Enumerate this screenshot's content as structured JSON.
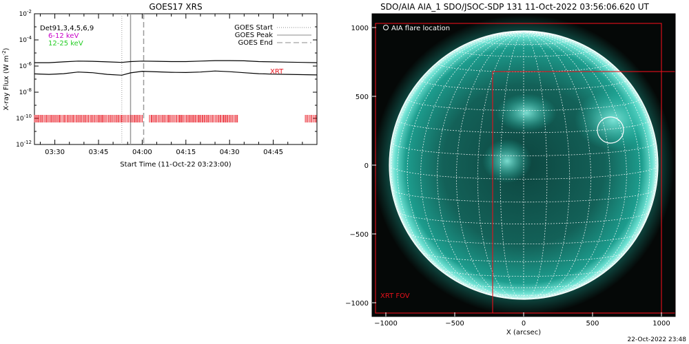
{
  "footer_timestamp": "22-Oct-2022 23:48",
  "colors": {
    "xrt_red": "#e8111b",
    "long_band": "#000000",
    "mid_band": "#c800c8",
    "high_band": "#22cc22",
    "sun_teal": "#1fc7b3"
  },
  "chart_data": [
    {
      "type": "line",
      "title": "GOES17 XRS",
      "xlabel": "Start Time (11-Oct-22 03:23:00)",
      "ylabel_main": "X-ray Flux (W m",
      "ylabel_sup": "-2",
      "ylabel_close": ")",
      "y_scale": "log",
      "xlim": [
        "03:23:00",
        "05:00:00"
      ],
      "ylim": [
        1e-12,
        0.01
      ],
      "x_ticks": [
        "03:30",
        "03:45",
        "04:00",
        "04:15",
        "04:30",
        "04:45"
      ],
      "y_ticks": [
        {
          "value": 0.01,
          "base": "10",
          "exp": "-2"
        },
        {
          "value": 0.0001,
          "base": "10",
          "exp": "-4"
        },
        {
          "value": 1e-06,
          "base": "10",
          "exp": "-6"
        },
        {
          "value": 1e-08,
          "base": "10",
          "exp": "-8"
        },
        {
          "value": 1e-10,
          "base": "10",
          "exp": "-10"
        },
        {
          "value": 1e-12,
          "base": "10",
          "exp": "-12"
        }
      ],
      "legend_left": {
        "det_label": "Det91,3,4,5,6,9",
        "entries": [
          {
            "label": "6-12 keV",
            "color": "#c800c8"
          },
          {
            "label": "12-25 keV",
            "color": "#22cc22"
          }
        ]
      },
      "legend_right": [
        {
          "label": "GOES Start",
          "style": "dotted"
        },
        {
          "label": "GOES Peak",
          "style": "solid"
        },
        {
          "label": "GOES End",
          "style": "dashed"
        }
      ],
      "goes_start": "03:53:00",
      "goes_peak": "03:56:00",
      "goes_end": "04:00:30",
      "xrt_label": "XRT",
      "series": [
        {
          "band": "long",
          "x": [
            "03:23",
            "03:28",
            "03:33",
            "03:38",
            "03:43",
            "03:48",
            "03:53",
            "03:56",
            "04:00",
            "04:05",
            "04:10",
            "04:15",
            "04:20",
            "04:25",
            "04:30",
            "04:35",
            "04:40",
            "04:45",
            "04:50",
            "04:55",
            "05:00"
          ],
          "y": [
            1.8e-06,
            1.8e-06,
            2.1e-06,
            2.4e-06,
            2.3e-06,
            2.1e-06,
            1.9e-06,
            2.2e-06,
            2.4e-06,
            2.3e-06,
            2.2e-06,
            2.2e-06,
            2.4e-06,
            2.6e-06,
            2.6e-06,
            2.5e-06,
            2.2e-06,
            2.1e-06,
            2e-06,
            1.9e-06,
            1.8e-06
          ]
        },
        {
          "band": "short",
          "x": [
            "03:23",
            "03:28",
            "03:33",
            "03:38",
            "03:43",
            "03:48",
            "03:53",
            "03:56",
            "04:00",
            "04:05",
            "04:10",
            "04:15",
            "04:20",
            "04:25",
            "04:30",
            "04:35",
            "04:40",
            "04:45",
            "04:50",
            "04:55",
            "05:00"
          ],
          "y": [
            2.5e-07,
            2.3e-07,
            2.6e-07,
            3.5e-07,
            3.1e-07,
            2.3e-07,
            2e-07,
            3e-07,
            4e-07,
            3.6e-07,
            3.3e-07,
            3.2e-07,
            3.5e-07,
            4.2e-07,
            3.7e-07,
            3.1e-07,
            2.6e-07,
            2.4e-07,
            2.3e-07,
            2.2e-07,
            2.1e-07
          ]
        }
      ],
      "xrt_coverage": [
        [
          "03:23:00",
          "04:00:20"
        ],
        [
          "04:02:30",
          "04:33:00"
        ],
        [
          "04:56:00",
          "05:00:00"
        ]
      ]
    },
    {
      "type": "image",
      "title": "SDO/AIA AIA_1 SDO/JSOC-SDP 131 11-Oct-2022 03:56:06.620 UT",
      "xlabel": "X (arcsec)",
      "xlim": [
        -1100,
        1100
      ],
      "ylim": [
        -1100,
        1100
      ],
      "x_ticks": [
        -1000,
        -500,
        0,
        500,
        1000
      ],
      "y_ticks": [
        -1000,
        -500,
        0,
        500,
        1000
      ],
      "x_tick_labels": [
        "−1000",
        "−500",
        "0",
        "500",
        "1000"
      ],
      "y_tick_labels": [
        "−1000",
        "−500",
        "0",
        "500",
        "1000"
      ],
      "solar_radius_arcsec": 975,
      "grid_spacing_deg": 10,
      "legend_label": "AIA flare location",
      "flare_center": [
        630,
        255
      ],
      "flare_radius": 95,
      "xrt_fov_label": "XRT FOV",
      "xrt_fov_boxes": [
        {
          "x1": -1075,
          "x2": 1000,
          "y1": -1075,
          "y2": 1030
        },
        {
          "x1": -225,
          "x2": 1100,
          "y1": -1075,
          "y2": 680
        }
      ]
    }
  ]
}
